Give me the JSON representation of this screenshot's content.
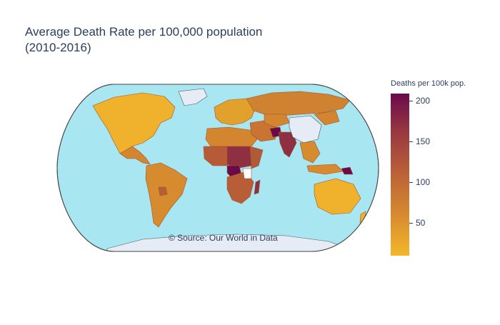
{
  "title": {
    "line1": "Average Death Rate per 100,000 population",
    "line2": "(2010-2016)"
  },
  "annotation": "© Source: Our World in Data",
  "colorbar": {
    "title": "Deaths per 100k pop.",
    "ticks": [
      "200",
      "150",
      "100",
      "50"
    ],
    "range": [
      10,
      210
    ],
    "colorscale": [
      "#f2b829",
      "#d88a2f",
      "#bc6237",
      "#9b3a3f",
      "#6a0a4b"
    ]
  },
  "colors": {
    "ocean": "#a8e6f2",
    "land_no_data": "#e6ecf5",
    "border": "#444444"
  }
}
